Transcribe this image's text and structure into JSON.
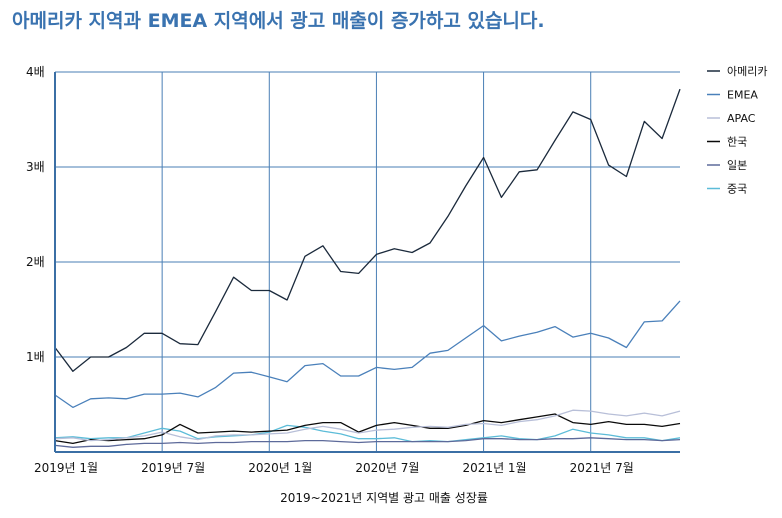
{
  "chart_data": {
    "type": "line",
    "title": "아메리카 지역과 EMEA 지역에서 광고 매출이 증가하고 있습니다.",
    "xlabel": "2019~2021년 지역별 광고 매출 성장률",
    "ylabel": "",
    "x_ticks": [
      "2019년 1월",
      "2019년 7월",
      "2020년 1월",
      "2020년 7월",
      "2021년 1월",
      "2021년 7월"
    ],
    "y_ticks": [
      "1배",
      "2배",
      "3배",
      "4배"
    ],
    "ylim": [
      0,
      4
    ],
    "x": [
      "2019-01",
      "2019-02",
      "2019-03",
      "2019-04",
      "2019-05",
      "2019-06",
      "2019-07",
      "2019-08",
      "2019-09",
      "2019-10",
      "2019-11",
      "2019-12",
      "2020-01",
      "2020-02",
      "2020-03",
      "2020-04",
      "2020-05",
      "2020-06",
      "2020-07",
      "2020-08",
      "2020-09",
      "2020-10",
      "2020-11",
      "2020-12",
      "2021-01",
      "2021-02",
      "2021-03",
      "2021-04",
      "2021-05",
      "2021-06",
      "2021-07",
      "2021-08",
      "2021-09",
      "2021-10",
      "2021-11",
      "2021-12"
    ],
    "grid": true,
    "legend_position": "right",
    "series": [
      {
        "name": "아메리카",
        "color": "#1b2a3c",
        "values": [
          1.1,
          0.85,
          1.0,
          1.0,
          1.1,
          1.25,
          1.25,
          1.14,
          1.13,
          1.48,
          1.84,
          1.7,
          1.7,
          1.6,
          2.06,
          2.17,
          1.9,
          1.88,
          2.08,
          2.14,
          2.1,
          2.2,
          2.48,
          2.8,
          3.1,
          2.68,
          2.95,
          2.97,
          3.28,
          3.58,
          3.5,
          3.02,
          2.9,
          3.48,
          3.3,
          3.82
        ]
      },
      {
        "name": "EMEA",
        "color": "#4a80ba",
        "values": [
          0.6,
          0.47,
          0.56,
          0.57,
          0.56,
          0.61,
          0.61,
          0.62,
          0.58,
          0.68,
          0.83,
          0.84,
          0.79,
          0.74,
          0.91,
          0.93,
          0.8,
          0.8,
          0.89,
          0.87,
          0.89,
          1.04,
          1.07,
          1.2,
          1.33,
          1.17,
          1.22,
          1.26,
          1.32,
          1.21,
          1.25,
          1.2,
          1.1,
          1.37,
          1.38,
          1.59
        ]
      },
      {
        "name": "APAC",
        "color": "#b8bfd8",
        "values": [
          0.14,
          0.15,
          0.12,
          0.13,
          0.15,
          0.17,
          0.21,
          0.16,
          0.13,
          0.17,
          0.18,
          0.18,
          0.19,
          0.2,
          0.24,
          0.27,
          0.24,
          0.2,
          0.23,
          0.24,
          0.26,
          0.27,
          0.26,
          0.29,
          0.3,
          0.28,
          0.32,
          0.34,
          0.38,
          0.44,
          0.43,
          0.4,
          0.38,
          0.41,
          0.38,
          0.43
        ]
      },
      {
        "name": "한국",
        "color": "#0a0a0a",
        "values": [
          0.12,
          0.09,
          0.13,
          0.12,
          0.13,
          0.14,
          0.18,
          0.29,
          0.2,
          0.21,
          0.22,
          0.21,
          0.22,
          0.23,
          0.28,
          0.31,
          0.31,
          0.21,
          0.28,
          0.31,
          0.28,
          0.25,
          0.25,
          0.28,
          0.33,
          0.31,
          0.34,
          0.37,
          0.4,
          0.31,
          0.29,
          0.32,
          0.29,
          0.29,
          0.27,
          0.3
        ]
      },
      {
        "name": "일본",
        "color": "#5d6a9a",
        "values": [
          0.07,
          0.05,
          0.06,
          0.06,
          0.08,
          0.09,
          0.09,
          0.1,
          0.09,
          0.1,
          0.1,
          0.11,
          0.11,
          0.11,
          0.12,
          0.12,
          0.11,
          0.1,
          0.11,
          0.11,
          0.11,
          0.11,
          0.11,
          0.12,
          0.14,
          0.14,
          0.13,
          0.13,
          0.14,
          0.14,
          0.15,
          0.14,
          0.13,
          0.13,
          0.12,
          0.13
        ]
      },
      {
        "name": "중국",
        "color": "#5cbcd8",
        "values": [
          0.15,
          0.16,
          0.14,
          0.15,
          0.15,
          0.2,
          0.25,
          0.22,
          0.14,
          0.16,
          0.17,
          0.18,
          0.21,
          0.28,
          0.26,
          0.22,
          0.19,
          0.14,
          0.14,
          0.15,
          0.11,
          0.12,
          0.11,
          0.13,
          0.15,
          0.17,
          0.14,
          0.13,
          0.17,
          0.24,
          0.2,
          0.18,
          0.15,
          0.15,
          0.12,
          0.15
        ]
      }
    ]
  }
}
